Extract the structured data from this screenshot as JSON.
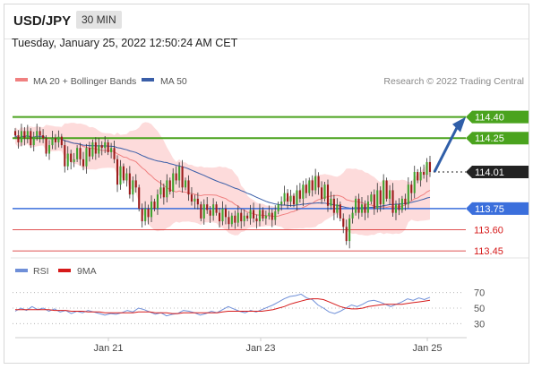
{
  "header": {
    "symbol": "USD/JPY",
    "timeframe": "30 MIN"
  },
  "timestamp": "Tuesday, January 25, 2022 12:50:24 AM CET",
  "legend": {
    "ma20_label": "MA 20 + Bollinger Bands",
    "ma50_label": "MA 50",
    "credit": "Research © 2022 Trading Central"
  },
  "rsi_legend": {
    "rsi_label": "RSI",
    "ma_label": "9MA"
  },
  "colors": {
    "ma20": "#f08080",
    "ma50": "#3a5ea8",
    "band": "#fdd5d5",
    "up": "#3fa32f",
    "down": "#9b1a1a",
    "resistance": "#4aa31e",
    "support": "#3b6fdc",
    "target": "#d61a1a",
    "current": "#222222",
    "arrow": "#2f5ea8",
    "rsi": "#6f8fd8",
    "rsi_ma": "#d61a1a"
  },
  "chart_data": [
    {
      "type": "candlestick",
      "x_tick_labels": [
        "Jan 21",
        "Jan 23",
        "Jan 25"
      ],
      "ylim": [
        113.4,
        114.48
      ],
      "levels": [
        {
          "value": 114.4,
          "label": "114.40",
          "kind": "resistance"
        },
        {
          "value": 114.25,
          "label": "114.25",
          "kind": "resistance"
        },
        {
          "value": 114.01,
          "label": "114.01",
          "kind": "current"
        },
        {
          "value": 113.75,
          "label": "113.75",
          "kind": "support"
        },
        {
          "value": 113.6,
          "label": "113.60",
          "kind": "target"
        },
        {
          "value": 113.45,
          "label": "113.45",
          "kind": "target"
        }
      ],
      "close": [
        114.27,
        114.22,
        114.3,
        114.25,
        114.3,
        114.2,
        114.26,
        114.3,
        114.27,
        114.25,
        114.14,
        114.2,
        114.25,
        114.22,
        114.26,
        114.2,
        114.05,
        114.14,
        114.08,
        114.1,
        114.18,
        114.1,
        114.05,
        114.18,
        114.12,
        114.22,
        114.14,
        114.2,
        114.18,
        114.22,
        114.15,
        114.18,
        114.1,
        113.92,
        114.05,
        113.95,
        114.0,
        113.85,
        113.95,
        113.9,
        113.75,
        113.66,
        113.75,
        113.69,
        113.8,
        113.75,
        113.85,
        113.9,
        113.83,
        113.95,
        113.87,
        114.0,
        113.95,
        114.05,
        113.9,
        113.95,
        113.85,
        113.8,
        113.82,
        113.78,
        113.68,
        113.78,
        113.74,
        113.7,
        113.78,
        113.72,
        113.66,
        113.75,
        113.69,
        113.64,
        113.7,
        113.65,
        113.72,
        113.66,
        113.7,
        113.68,
        113.74,
        113.68,
        113.66,
        113.74,
        113.68,
        113.7,
        113.72,
        113.67,
        113.73,
        113.78,
        113.8,
        113.86,
        113.8,
        113.84,
        113.78,
        113.88,
        113.82,
        113.92,
        113.86,
        113.95,
        113.88,
        113.98,
        113.9,
        113.82,
        113.92,
        113.77,
        113.82,
        113.72,
        113.78,
        113.68,
        113.62,
        113.52,
        113.68,
        113.72,
        113.82,
        113.72,
        113.78,
        113.72,
        113.8,
        113.85,
        113.75,
        113.88,
        113.78,
        113.95,
        113.82,
        113.88,
        113.72,
        113.78,
        113.74,
        113.82,
        113.78,
        113.92,
        113.86,
        114.01,
        113.95,
        114.01,
        113.99,
        114.08,
        114.01
      ]
    },
    {
      "type": "line",
      "title": "RSI",
      "y_tick_labels": [
        "70",
        "50",
        "30"
      ],
      "ylim": [
        20,
        80
      ],
      "series": [
        {
          "name": "RSI",
          "values": [
            46,
            50,
            47,
            52,
            48,
            50,
            46,
            49,
            45,
            47,
            43,
            46,
            44,
            47,
            45,
            43,
            41,
            43,
            42,
            44,
            47,
            45,
            50,
            48,
            45,
            42,
            44,
            40,
            42,
            43,
            47,
            46,
            44,
            41,
            43,
            46,
            44,
            48,
            52,
            49,
            46,
            44,
            47,
            45,
            48,
            51,
            54,
            58,
            62,
            65,
            66,
            68,
            63,
            61,
            54,
            50,
            45,
            43,
            46,
            50,
            54,
            52,
            55,
            59,
            60,
            58,
            55,
            52,
            55,
            58,
            62,
            60,
            63,
            61,
            64
          ]
        },
        {
          "name": "9MA",
          "values": [
            48,
            48,
            48,
            48,
            48,
            48,
            48,
            47,
            47,
            47,
            46,
            46,
            46,
            45,
            45,
            45,
            44,
            44,
            44,
            44,
            44,
            44,
            45,
            45,
            45,
            44,
            44,
            44,
            43,
            43,
            44,
            44,
            44,
            44,
            44,
            44,
            44,
            45,
            46,
            46,
            46,
            46,
            46,
            46,
            46,
            47,
            48,
            50,
            52,
            55,
            57,
            59,
            61,
            62,
            62,
            61,
            58,
            55,
            52,
            50,
            49,
            49,
            50,
            52,
            53,
            54,
            55,
            55,
            55,
            55,
            56,
            57,
            58,
            59,
            60
          ]
        }
      ]
    }
  ]
}
